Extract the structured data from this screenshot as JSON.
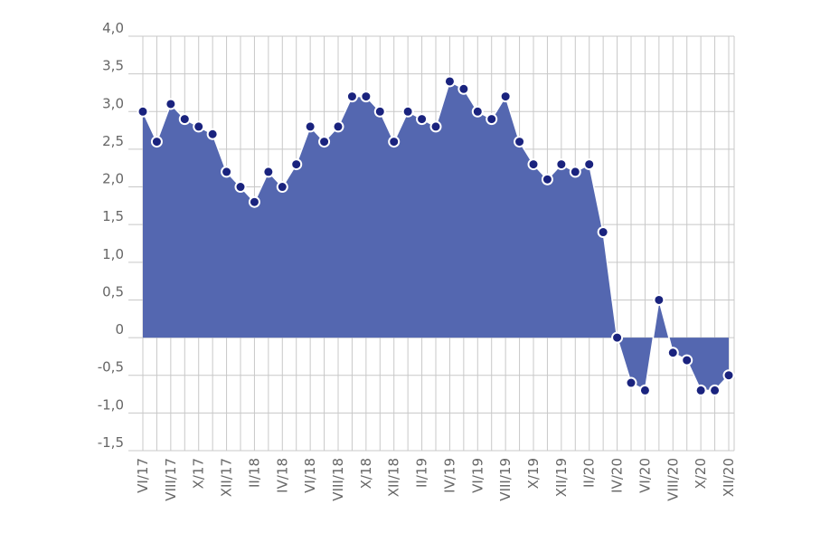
{
  "chart_data": {
    "type": "area",
    "title": "",
    "xlabel": "",
    "ylabel": "",
    "ylim": [
      -1.5,
      4.0
    ],
    "y_ticks": [
      "4,0",
      "3,5",
      "3,0",
      "2,5",
      "2,0",
      "1,5",
      "1,0",
      "0,5",
      "0",
      "-0,5",
      "-1,0",
      "-1,5"
    ],
    "x_tick_labels": [
      "VI/17",
      "VIII/17",
      "X/17",
      "XII/17",
      "II/18",
      "IV/18",
      "VI/18",
      "VIII/18",
      "X/18",
      "XII/18",
      "II/19",
      "IV/19",
      "VI/19",
      "VIII/19",
      "X/19",
      "XII/19",
      "II/20",
      "IV/20",
      "VI/20",
      "VIII/20",
      "X/20",
      "XII/20"
    ],
    "grid": true,
    "colors": {
      "area_fill": "#5467b0",
      "marker_fill": "#1a237e",
      "marker_stroke": "#ffffff",
      "grid": "#c8c8c8",
      "axis_text": "#666666"
    },
    "series": [
      {
        "x": [
          "VI/17",
          "VII/17",
          "VIII/17",
          "IX/17",
          "X/17",
          "XI/17",
          "XII/17",
          "I/18",
          "II/18",
          "III/18",
          "IV/18",
          "V/18",
          "VI/18",
          "VII/18",
          "VIII/18",
          "IX/18",
          "X/18",
          "XI/18",
          "XII/18",
          "I/19",
          "II/19",
          "III/19",
          "IV/19",
          "V/19",
          "VI/19",
          "VII/19",
          "VIII/19",
          "IX/19",
          "X/19",
          "XI/19",
          "XII/19",
          "I/20",
          "II/20",
          "III/20",
          "IV/20",
          "V/20",
          "VI/20",
          "VII/20",
          "VIII/20",
          "IX/20",
          "X/20",
          "XI/20",
          "XII/20"
        ],
        "values": [
          3.0,
          2.6,
          3.1,
          2.9,
          2.8,
          2.7,
          2.2,
          2.0,
          1.8,
          2.2,
          2.0,
          2.3,
          2.8,
          2.6,
          2.8,
          3.2,
          3.2,
          3.0,
          2.6,
          3.0,
          2.9,
          2.8,
          3.4,
          3.3,
          3.0,
          2.9,
          3.2,
          2.6,
          2.3,
          2.1,
          2.3,
          2.2,
          2.3,
          1.4,
          0.0,
          -0.6,
          -0.7,
          0.5,
          -0.2,
          -0.3,
          -0.7,
          -0.7,
          -0.5
        ]
      }
    ]
  }
}
